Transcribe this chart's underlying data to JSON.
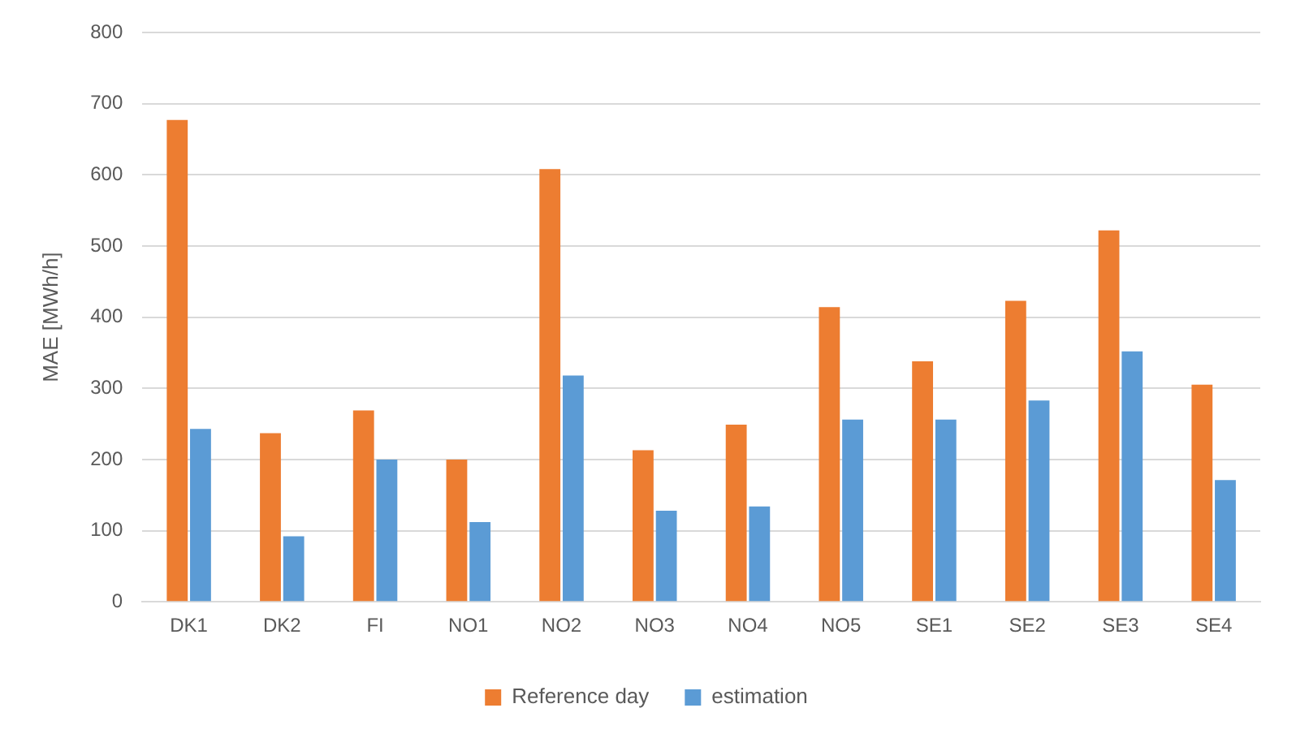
{
  "chart_data": {
    "type": "bar",
    "ylabel": "MAE [MWh/h]",
    "categories": [
      "DK1",
      "DK2",
      "FI",
      "NO1",
      "NO2",
      "NO3",
      "NO4",
      "NO5",
      "SE1",
      "SE2",
      "SE3",
      "SE4"
    ],
    "series": [
      {
        "name": "Reference day",
        "color": "#ed7d31",
        "values": [
          677,
          237,
          269,
          200,
          608,
          213,
          249,
          414,
          338,
          423,
          522,
          305
        ]
      },
      {
        "name": "estimation",
        "color": "#5b9bd5",
        "values": [
          243,
          92,
          200,
          112,
          318,
          128,
          134,
          256,
          256,
          283,
          352,
          171
        ]
      }
    ],
    "ylim": [
      0,
      800
    ],
    "yticks": [
      0,
      100,
      200,
      300,
      400,
      500,
      600,
      700,
      800
    ],
    "grid": "y",
    "legend": "bottom"
  }
}
